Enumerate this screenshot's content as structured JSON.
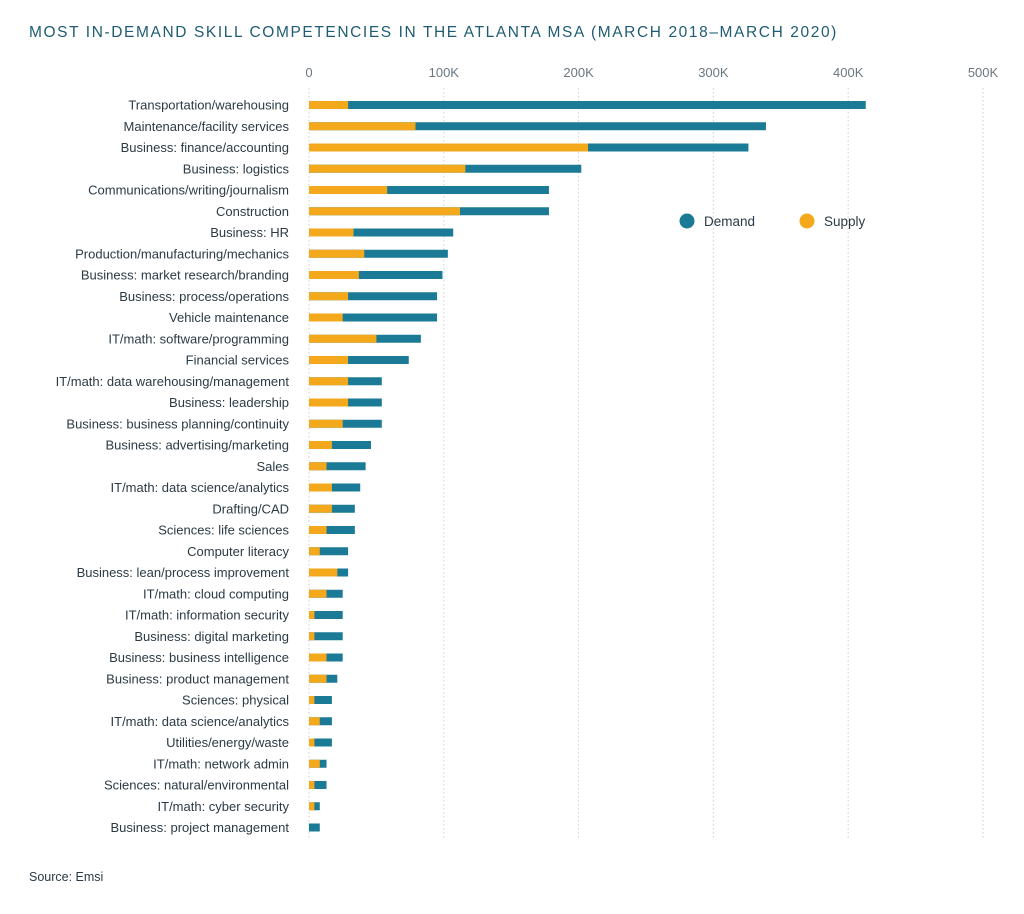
{
  "chart_data": {
    "type": "bar",
    "orientation": "horizontal",
    "stacked": "overlay",
    "title": "MOST IN-DEMAND SKILL COMPETENCIES IN THE ATLANTA MSA (MARCH 2018–MARCH 2020)",
    "source": "Source: Emsi",
    "xlim": [
      0,
      500000
    ],
    "xticks": [
      0,
      100000,
      200000,
      300000,
      400000,
      500000
    ],
    "xtick_labels": [
      "0",
      "100K",
      "200K",
      "300K",
      "400K",
      "500K"
    ],
    "grid": "vertical dotted",
    "legend_position": "right",
    "categories": [
      "Transportation/warehousing",
      "Maintenance/facility services",
      "Business: finance/accounting",
      "Business: logistics",
      "Communications/writing/journalism",
      "Construction",
      "Business: HR",
      "Production/manufacturing/mechanics",
      "Business: market research/branding",
      "Business: process/operations",
      "Vehicle maintenance",
      "IT/math: software/programming",
      "Financial services",
      "IT/math: data warehousing/management",
      "Business: leadership",
      "Business: business planning/continuity",
      "Business: advertising/marketing",
      "Sales",
      "IT/math: data science/analytics",
      "Drafting/CAD",
      "Sciences: life sciences",
      "Computer literacy",
      "Business: lean/process improvement",
      "IT/math: cloud computing",
      "IT/math: information security",
      "Business: digital marketing",
      "Business: business intelligence",
      "Business: product management",
      "Sciences: physical",
      "IT/math: data science/analytics",
      "Utilities/energy/waste",
      "IT/math: network admin",
      "Sciences: natural/environmental",
      "IT/math: cyber security",
      "Business: project management"
    ],
    "series": [
      {
        "name": "Demand",
        "color": "#1b7a96",
        "values": [
          413000,
          339000,
          326000,
          202000,
          178000,
          178000,
          107000,
          103000,
          99000,
          95000,
          95000,
          83000,
          74000,
          54000,
          54000,
          54000,
          46000,
          42000,
          38000,
          34000,
          34000,
          29000,
          29000,
          25000,
          25000,
          25000,
          25000,
          21000,
          17000,
          17000,
          17000,
          13000,
          13000,
          8000,
          8000
        ]
      },
      {
        "name": "Supply",
        "color": "#f4a91c",
        "values": [
          29000,
          79000,
          207000,
          116000,
          58000,
          112000,
          33000,
          41000,
          37000,
          29000,
          25000,
          50000,
          29000,
          29000,
          29000,
          25000,
          17000,
          13000,
          17000,
          17000,
          13000,
          8000,
          21000,
          13000,
          4000,
          4000,
          13000,
          13000,
          4000,
          8000,
          4000,
          8000,
          4000,
          4000,
          0
        ]
      }
    ]
  }
}
